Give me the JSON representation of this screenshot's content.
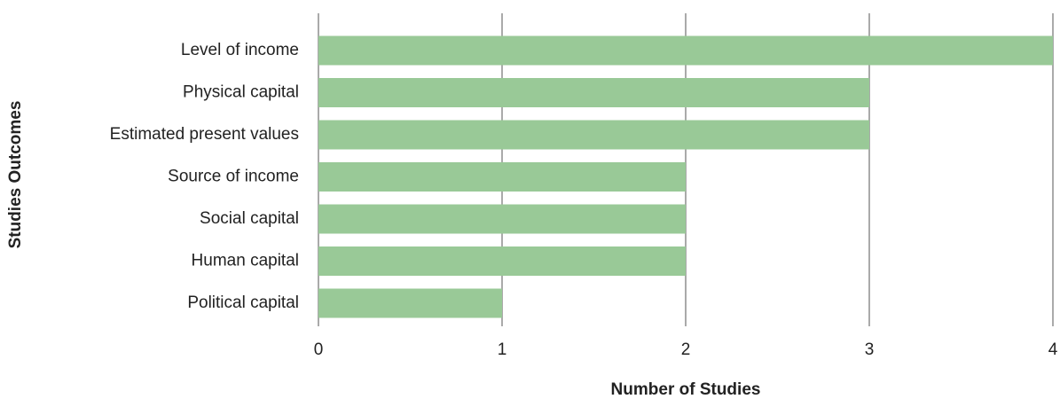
{
  "chart_data": {
    "type": "barh",
    "categories": [
      "Level of income",
      "Physical capital",
      "Estimated present values",
      "Source of income",
      "Social capital",
      "Human capital",
      "Political capital"
    ],
    "values": [
      4,
      3,
      3,
      2,
      2,
      2,
      1
    ],
    "color": "#99c997",
    "x_label": "Number of Studies",
    "y_label": "Studies Outcomes",
    "xlim": [
      0,
      4
    ],
    "xticks": [
      0,
      1,
      2,
      3,
      4
    ],
    "grid": true
  }
}
